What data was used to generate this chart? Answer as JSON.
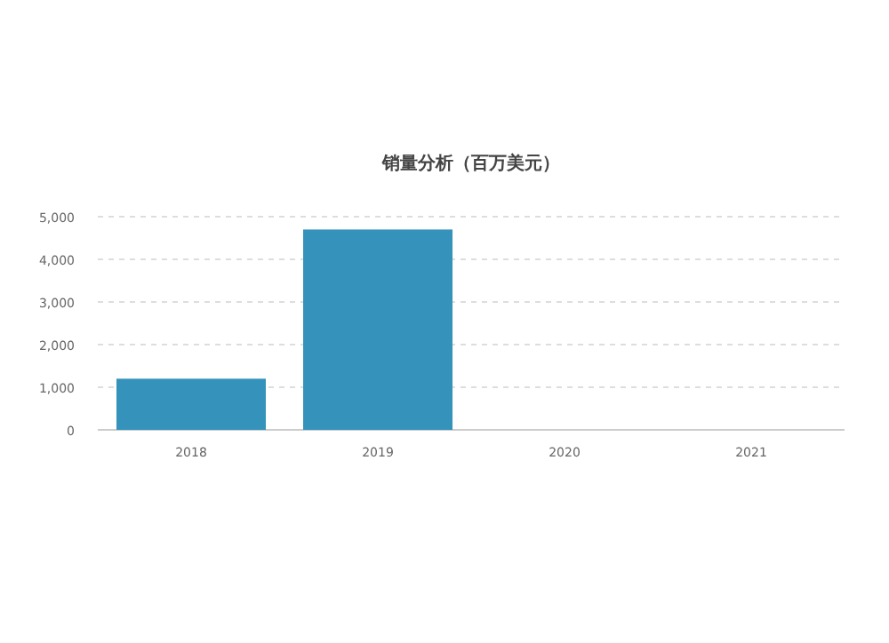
{
  "chart_data": {
    "type": "bar",
    "title": "销量分析（百万美元）",
    "categories": [
      "2018",
      "2019",
      "2020",
      "2021"
    ],
    "series": [
      {
        "color": "#3593bb",
        "values": [
          1200,
          4700,
          null,
          null
        ]
      }
    ],
    "ylim": [
      0,
      5000
    ],
    "yticks": [
      {
        "value": 0,
        "label": "0"
      },
      {
        "value": 1000,
        "label": "1,000"
      },
      {
        "value": 2000,
        "label": "2,000"
      },
      {
        "value": 3000,
        "label": "3,000"
      },
      {
        "value": 4000,
        "label": "4,000"
      },
      {
        "value": 5000,
        "label": "5,000"
      }
    ],
    "grid": "y"
  }
}
